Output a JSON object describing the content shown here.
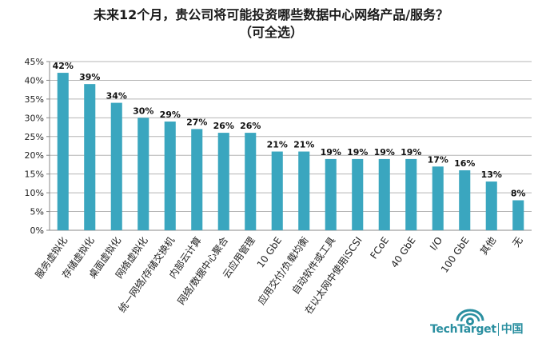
{
  "chart_data": {
    "type": "bar",
    "title": "未来12个月，贵公司将可能投资哪些数据中心网络产品/服务？",
    "subtitle": "（可全选）",
    "categories": [
      "服务虚拟化",
      "存储虚拟化",
      "桌面虚拟化",
      "网络虚拟化",
      "统一网络/存储交换机",
      "内部云计算",
      "网络/数据中心聚合",
      "云应用管理",
      "10 GbE",
      "应用交付/负载均衡",
      "自动软件或工具",
      "在以太网中使用iSCSI",
      "FCoE",
      "40 GbE",
      "I/O",
      "100 GbE",
      "其他",
      "无"
    ],
    "values": [
      42,
      39,
      34,
      30,
      29,
      27,
      26,
      26,
      21,
      21,
      19,
      19,
      19,
      19,
      17,
      16,
      13,
      8
    ],
    "value_labels": [
      "42%",
      "39%",
      "34%",
      "30%",
      "29%",
      "27%",
      "26%",
      "26%",
      "21%",
      "21%",
      "19%",
      "19%",
      "19%",
      "19%",
      "17%",
      "16%",
      "13%",
      "8%"
    ],
    "ylim": [
      0,
      45
    ],
    "yticks": [
      "0%",
      "5%",
      "10%",
      "15%",
      "20%",
      "25%",
      "30%",
      "35%",
      "40%",
      "45%"
    ],
    "grid": true,
    "bar_color": "#3aa6bf"
  },
  "brand": {
    "name": "TechTarget",
    "suffix": "中国",
    "color": "#2a8fa0",
    "icon": "eye-logo-icon"
  }
}
